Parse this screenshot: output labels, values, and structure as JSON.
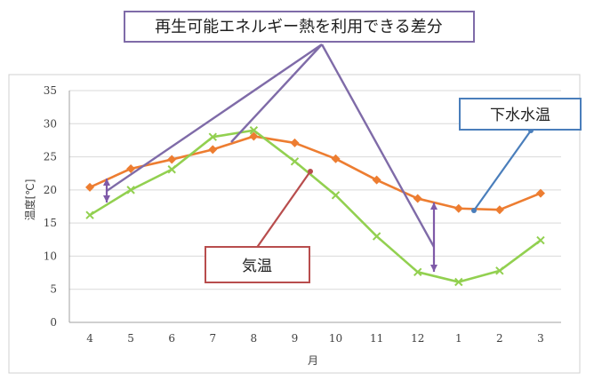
{
  "annotations": {
    "title": "再生可能エネルギー熱を利用できる差分",
    "sewage_label": "下水水温",
    "air_label": "気温"
  },
  "chart_data": {
    "type": "line",
    "categories": [
      "4",
      "5",
      "6",
      "7",
      "8",
      "9",
      "10",
      "11",
      "12",
      "1",
      "2",
      "3"
    ],
    "xlabel": "月",
    "ylabel": "温度[℃]",
    "ylim": [
      0,
      35
    ],
    "yticks": [
      0,
      5,
      10,
      15,
      20,
      25,
      30,
      35
    ],
    "grid": true,
    "legend": "none",
    "series": [
      {
        "name": "下水水温",
        "color": "#ed7d31",
        "marker": "diamond",
        "values": [
          20.4,
          23.2,
          24.6,
          26.1,
          28.1,
          27.1,
          24.7,
          21.5,
          18.7,
          17.2,
          17.0,
          19.5
        ]
      },
      {
        "name": "気温",
        "color": "#92d050",
        "marker": "x",
        "values": [
          16.2,
          20.0,
          23.1,
          28.0,
          29.0,
          24.3,
          19.2,
          13.0,
          7.6,
          6.1,
          7.8,
          12.4
        ]
      }
    ],
    "callout_colors": {
      "title": "#7f6ba8",
      "sewage": "#4a7ebb",
      "air": "#b84d4d",
      "arrow": "#7f5aa8"
    }
  }
}
